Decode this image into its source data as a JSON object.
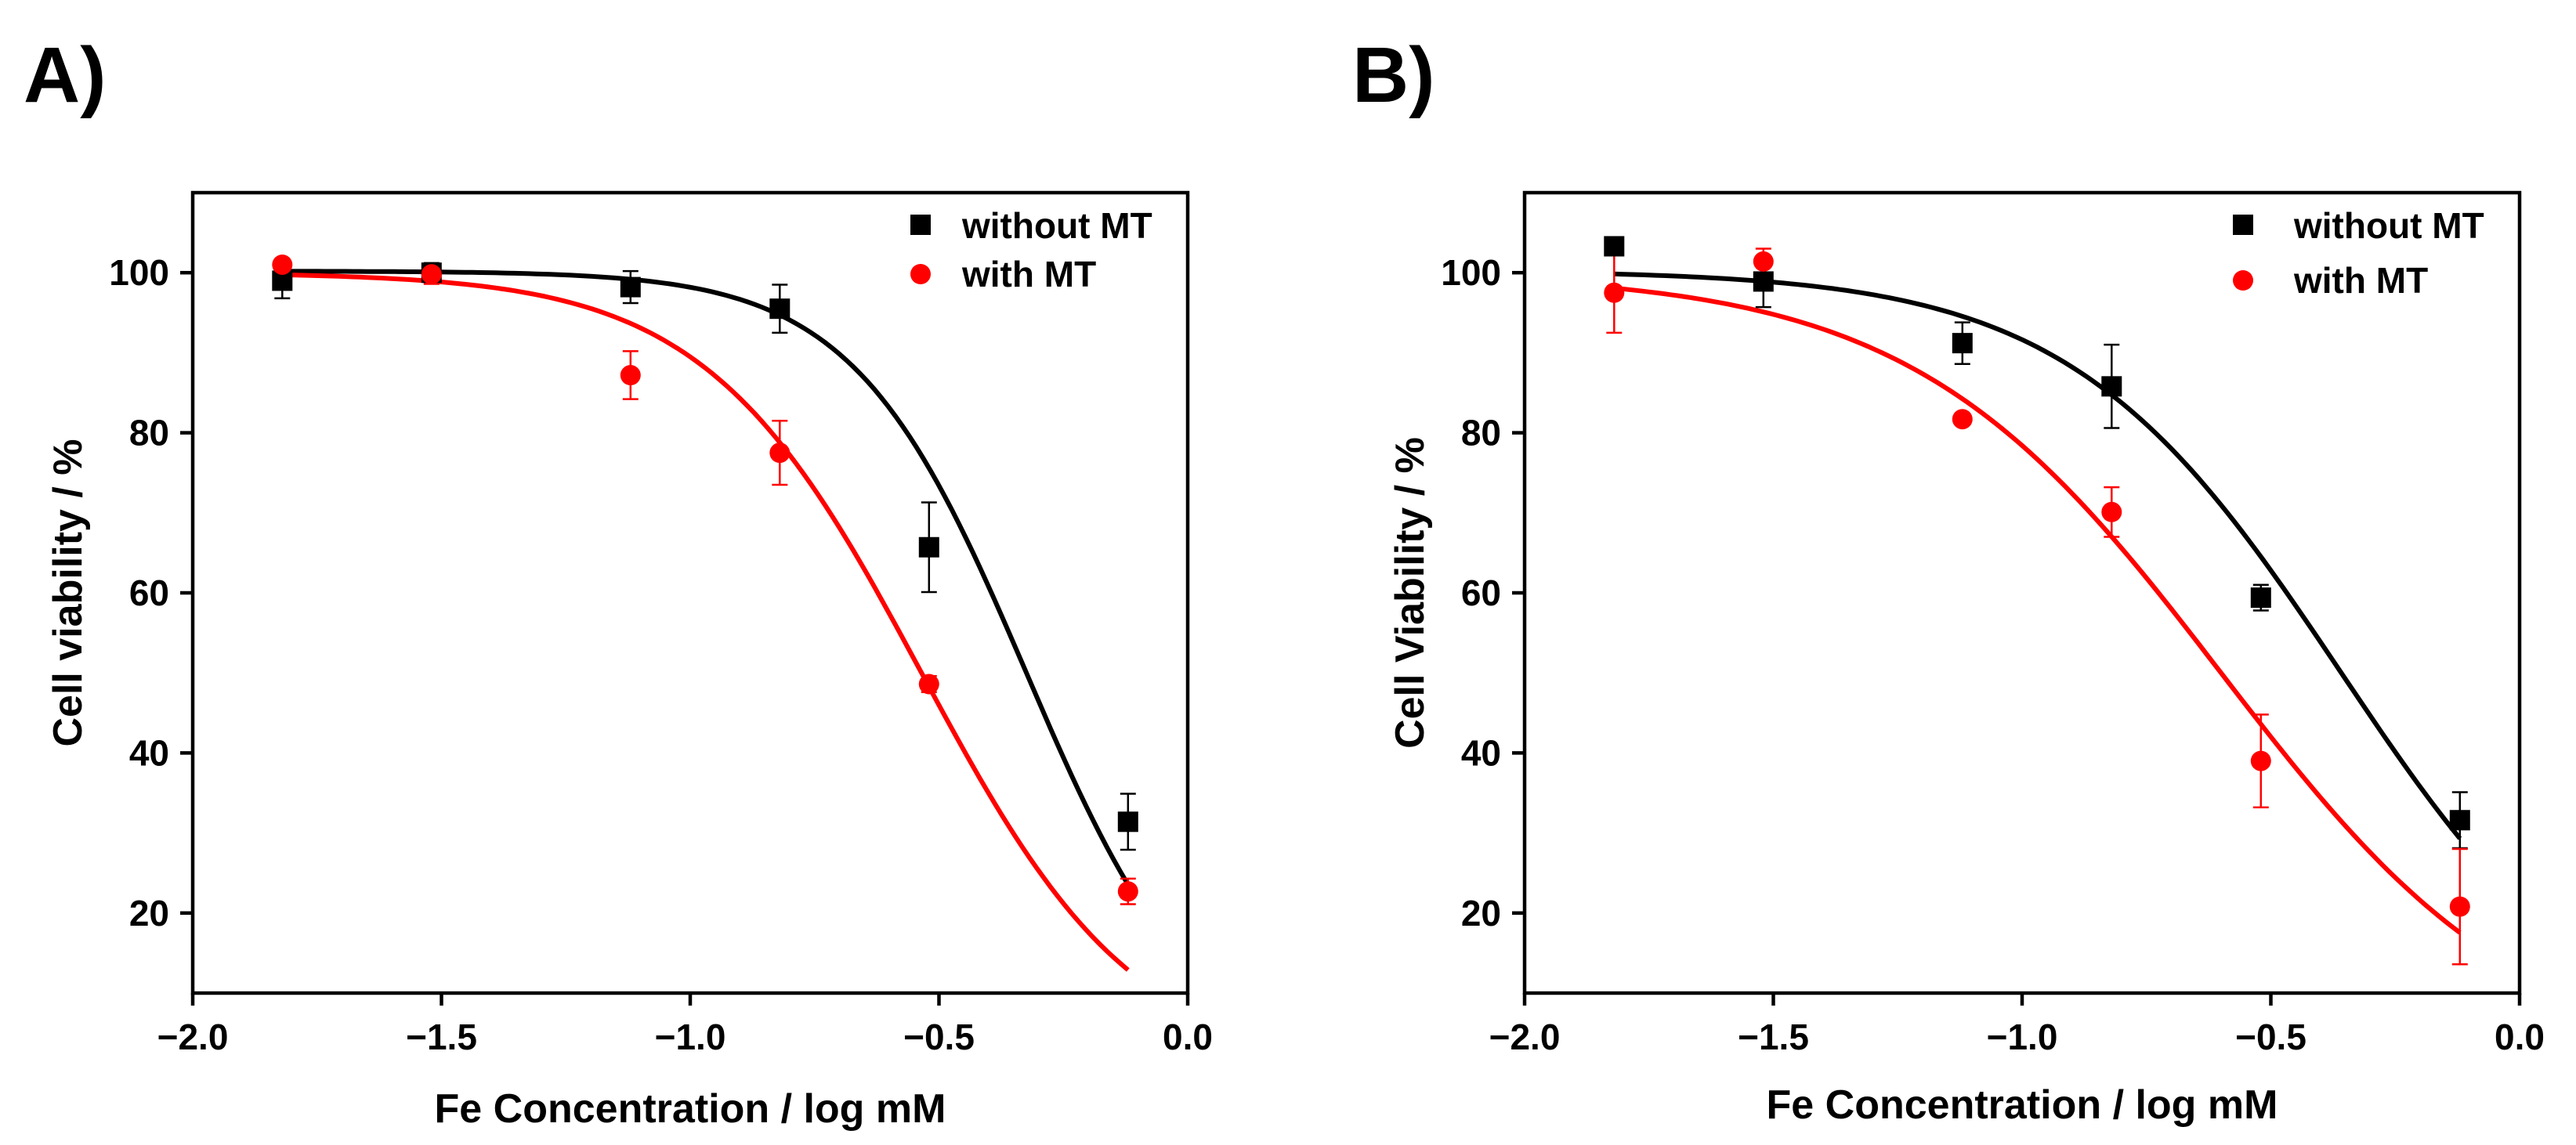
{
  "chart_data": [
    {
      "type": "scatter",
      "panel_label": "A)",
      "xlabel": "Fe Concentration / log mM",
      "ylabel": "Cell viability / %",
      "xlim": [
        -2.0,
        0.0
      ],
      "ylim": [
        10,
        110
      ],
      "xticks": [
        -2.0,
        -1.5,
        -1.0,
        -0.5,
        0.0
      ],
      "xtick_labels": [
        "−2.0",
        "−1.5",
        "−1.0",
        "−0.5",
        "0.0"
      ],
      "yticks": [
        20,
        40,
        60,
        80,
        100
      ],
      "ytick_labels": [
        "20",
        "40",
        "60",
        "80",
        "100"
      ],
      "legend_position": "top-right",
      "series": [
        {
          "name": "without MT",
          "color": "#000000",
          "marker": "square",
          "x": [
            -1.82,
            -1.52,
            -1.12,
            -0.82,
            -0.52,
            -0.12
          ],
          "y": [
            99,
            100,
            98.2,
            95.5,
            65.7,
            31.4
          ],
          "err": [
            2.2,
            1.2,
            2.0,
            3.0,
            5.6,
            3.5
          ],
          "fit": {
            "top": 100.2,
            "bottom": 0,
            "log_ec50": -0.325,
            "hill": 2.5,
            "x_range": [
              -1.82,
              -0.12
            ]
          }
        },
        {
          "name": "with MT",
          "color": "#ff0000",
          "marker": "circle",
          "x": [
            -1.82,
            -1.52,
            -1.12,
            -0.82,
            -0.52,
            -0.12
          ],
          "y": [
            101,
            99.8,
            87.2,
            77.5,
            48.6,
            22.7
          ],
          "err": [
            0.6,
            1.2,
            3.0,
            4.0,
            1.0,
            1.6
          ],
          "fit": {
            "top": 100.0,
            "bottom": 0,
            "log_ec50": -0.535,
            "hill": 2.0,
            "x_range": [
              -1.82,
              -0.12
            ]
          }
        }
      ]
    },
    {
      "type": "scatter",
      "panel_label": "B)",
      "xlabel": "Fe Concentration / log mM",
      "ylabel": "Cell Viability / %",
      "xlim": [
        -2.0,
        0.0
      ],
      "ylim": [
        10,
        110
      ],
      "xticks": [
        -2.0,
        -1.5,
        -1.0,
        -0.5,
        0.0
      ],
      "xtick_labels": [
        "−2.0",
        "−1.5",
        "−1.0",
        "−0.5",
        "0.0"
      ],
      "yticks": [
        20,
        40,
        60,
        80,
        100
      ],
      "ytick_labels": [
        "20",
        "40",
        "60",
        "80",
        "100"
      ],
      "legend_position": "top-right",
      "series": [
        {
          "name": "without MT",
          "color": "#000000",
          "marker": "square",
          "x": [
            -1.82,
            -1.52,
            -1.12,
            -0.82,
            -0.52,
            -0.12
          ],
          "y": [
            103.3,
            98.9,
            91.2,
            85.8,
            59.4,
            31.6
          ],
          "err": [
            0.3,
            3.2,
            2.6,
            5.2,
            1.6,
            3.5
          ],
          "fit": {
            "top": 100.3,
            "bottom": 0,
            "log_ec50": -0.36,
            "hill": 1.6,
            "x_range": [
              -1.82,
              -0.12
            ]
          }
        },
        {
          "name": "with MT",
          "color": "#ff0000",
          "marker": "circle",
          "x": [
            -1.82,
            -1.52,
            -1.12,
            -0.82,
            -0.52,
            -0.12
          ],
          "y": [
            97.5,
            101.4,
            81.7,
            70.1,
            39.0,
            20.8
          ],
          "err": [
            5.0,
            1.6,
            0.6,
            3.1,
            5.8,
            7.2
          ],
          "fit": {
            "top": 100.0,
            "bottom": 0,
            "log_ec50": -0.6,
            "hill": 1.4,
            "x_range": [
              -1.82,
              -0.12
            ]
          }
        }
      ]
    }
  ]
}
